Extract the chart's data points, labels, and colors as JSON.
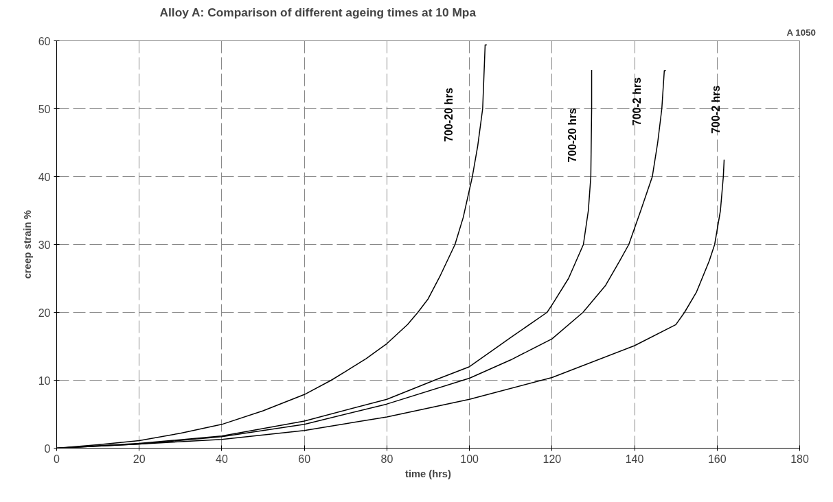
{
  "chart_data": {
    "type": "line",
    "title": "Alloy A:  Comparison of different ageing times  at 10 Mpa",
    "xlabel": "time (hrs)",
    "ylabel": "creep strain %",
    "annotations": [
      "A 1050"
    ],
    "xlim": [
      0,
      180
    ],
    "ylim": [
      0,
      60
    ],
    "xticks": [
      0,
      20,
      40,
      60,
      80,
      100,
      120,
      140,
      160,
      180
    ],
    "yticks": [
      0,
      10,
      20,
      30,
      40,
      50,
      60
    ],
    "grid": true,
    "marker": "none",
    "line_style": "solid",
    "series": [
      {
        "name": "700-20 hrs",
        "color": "#000000",
        "x": [
          0,
          10,
          20,
          30,
          40,
          50,
          60,
          66.5,
          70,
          75,
          80,
          85,
          87.5,
          90,
          93,
          96.5,
          98.5,
          100.7,
          102,
          103.2,
          103.8,
          104.2
        ],
        "values": [
          0,
          0.5,
          1.1,
          2.2,
          3.5,
          5.5,
          7.9,
          10,
          11.3,
          13.2,
          15.4,
          18.2,
          20,
          22,
          25.5,
          30,
          34,
          40,
          44.5,
          50,
          59.4,
          59.4
        ]
      },
      {
        "name": "700-20 hrs",
        "color": "#000000",
        "x": [
          0,
          20,
          40,
          60,
          80,
          91.5,
          100,
          110,
          118.8,
          120,
          124,
          127.6,
          128.8,
          129.4,
          129.6,
          129.6
        ],
        "values": [
          0,
          0.7,
          1.8,
          4.0,
          7.2,
          10,
          12.0,
          16.3,
          20,
          21.1,
          25,
          30,
          35,
          40,
          50,
          55.7
        ]
      },
      {
        "name": "700-2 hrs",
        "color": "#000000",
        "x": [
          0,
          20,
          40,
          60,
          80,
          100,
          110,
          120,
          127.5,
          133,
          136.4,
          138.6,
          141.5,
          144.3,
          145.6,
          146.6,
          147.2,
          147.6
        ],
        "values": [
          0,
          0.6,
          1.7,
          3.5,
          6.5,
          10.3,
          13.0,
          16.1,
          20,
          24,
          27.6,
          30,
          35,
          40,
          45,
          50,
          55.6,
          55.6
        ]
      },
      {
        "name": "700-2 hrs",
        "color": "#000000",
        "x": [
          0,
          20,
          40,
          60,
          80,
          100,
          120,
          140,
          150,
          152.1,
          155,
          158.1,
          159.4,
          160.8,
          161.5,
          161.7
        ],
        "values": [
          0,
          0.6,
          1.3,
          2.6,
          4.6,
          7.2,
          10.4,
          15.1,
          18.2,
          20,
          23,
          27.6,
          30,
          35,
          40,
          42.5
        ]
      }
    ]
  }
}
